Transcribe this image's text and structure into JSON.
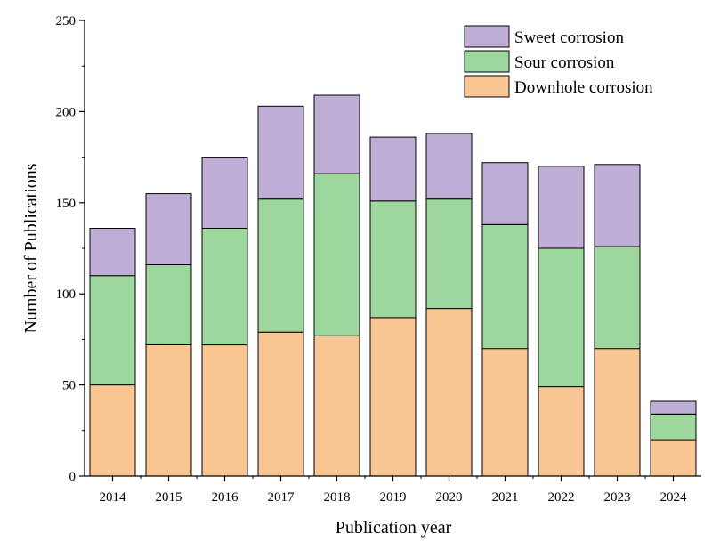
{
  "chart_data": {
    "type": "bar",
    "stacked": true,
    "categories": [
      "2014",
      "2015",
      "2016",
      "2017",
      "2018",
      "2019",
      "2020",
      "2021",
      "2022",
      "2023",
      "2024"
    ],
    "series": [
      {
        "name": "Downhole corrosion",
        "color": "#f9c593",
        "values": [
          50,
          72,
          72,
          79,
          77,
          87,
          92,
          70,
          49,
          70,
          20
        ]
      },
      {
        "name": "Sour corrosion",
        "color": "#9dd79d",
        "values": [
          60,
          44,
          64,
          73,
          89,
          64,
          60,
          68,
          76,
          56,
          14
        ]
      },
      {
        "name": "Sweet corrosion",
        "color": "#bfafd6",
        "values": [
          26,
          39,
          39,
          51,
          43,
          35,
          36,
          34,
          45,
          45,
          7
        ]
      }
    ],
    "legend_order": [
      "Sweet corrosion",
      "Sour corrosion",
      "Downhole corrosion"
    ],
    "legend_position": "top-right",
    "xlabel": "Publication year",
    "ylabel": "Number of Publications",
    "ylim": [
      0,
      250
    ],
    "yticks": [
      "0",
      "50",
      "100",
      "150",
      "200",
      "250"
    ],
    "grid": false
  }
}
